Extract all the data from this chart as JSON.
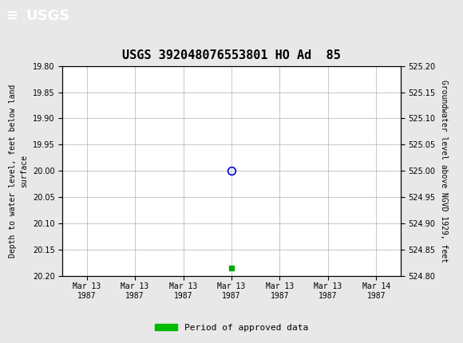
{
  "title": "USGS 392048076553801 HO Ad  85",
  "header_color": "#1c6b3a",
  "background_color": "#e8e8e8",
  "plot_bg_color": "#ffffff",
  "grid_color": "#b0b0b0",
  "left_ylabel": "Depth to water level, feet below land\nsurface",
  "right_ylabel": "Groundwater level above NGVD 1929, feet",
  "ylim_left_top": 19.8,
  "ylim_left_bottom": 20.2,
  "ylim_right_top": 525.2,
  "ylim_right_bottom": 524.8,
  "yticks_left": [
    19.8,
    19.85,
    19.9,
    19.95,
    20.0,
    20.05,
    20.1,
    20.15,
    20.2
  ],
  "yticks_right": [
    524.8,
    524.85,
    524.9,
    524.95,
    525.0,
    525.05,
    525.1,
    525.15,
    525.2
  ],
  "data_point_x": 3.0,
  "data_point_y": 20.0,
  "data_point_color": "#0000cc",
  "small_point_x": 3.0,
  "small_point_y": 20.185,
  "small_point_color": "#00aa00",
  "x_tick_positions": [
    0,
    1,
    2,
    3,
    4,
    5,
    6
  ],
  "x_tick_labels": [
    "Mar 13\n1987",
    "Mar 13\n1987",
    "Mar 13\n1987",
    "Mar 13\n1987",
    "Mar 13\n1987",
    "Mar 13\n1987",
    "Mar 14\n1987"
  ],
  "legend_label": "Period of approved data",
  "legend_color": "#00bb00",
  "title_fontsize": 11,
  "axis_fontsize": 7,
  "label_fontsize": 7
}
